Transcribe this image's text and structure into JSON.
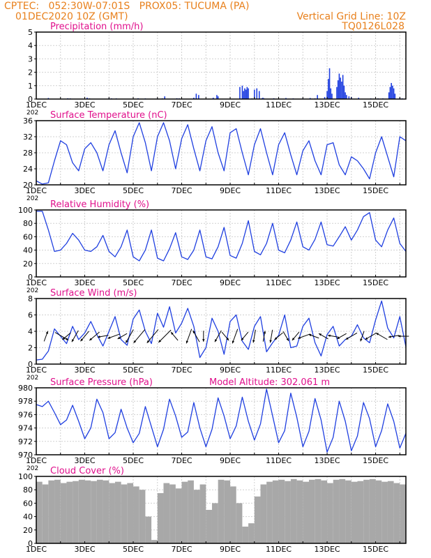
{
  "header": {
    "line1": "CPTEC:   052:30W-07:01S   PROX05: TUCUMA (PA)",
    "line2_left": "01DEC2020 10Z (GMT)",
    "line2_right": "Vertical Grid Line: 10Z",
    "line3_right": "TQ0126L028"
  },
  "colors": {
    "header": "#e8801c",
    "panel_title": "#e0108c",
    "series": "#1f3fe0",
    "bars": "#1f3fe0",
    "cloud": "#a8a8a8",
    "grid": "#d0d0d0",
    "arrows": "#000000"
  },
  "x_ticks": [
    "1DEC",
    "3DEC",
    "5DEC",
    "7DEC",
    "9DEC",
    "11DEC",
    "13DEC",
    "15DEC"
  ],
  "x_overlap_fragment": "202",
  "chart_data": [
    {
      "type": "bar",
      "title": "Precipitation (mm/h)",
      "ylim": [
        0,
        5
      ],
      "yticks": [
        0,
        1,
        2,
        3,
        4,
        5
      ],
      "xlim": [
        0,
        15.25
      ],
      "x": [
        0.5,
        1.3,
        1.4,
        2.1,
        2.2,
        3.0,
        3.1,
        3.3,
        4.2,
        4.5,
        5.0,
        5.2,
        5.3,
        5.8,
        5.9,
        6.5,
        6.6,
        6.7,
        7.3,
        7.45,
        7.5,
        8.4,
        8.5,
        8.55,
        8.6,
        8.65,
        8.7,
        8.75,
        8.9,
        9.0,
        9.1,
        9.2,
        9.3,
        9.35,
        9.4,
        9.8,
        10.3,
        10.6,
        11.0,
        11.3,
        11.5,
        11.6,
        11.9,
        12.0,
        12.05,
        12.1,
        12.15,
        12.2,
        12.4,
        12.45,
        12.5,
        12.55,
        12.6,
        12.65,
        12.7,
        12.75,
        12.8,
        12.9,
        13.0,
        13.3,
        13.8,
        14.1,
        14.3,
        14.55,
        14.6,
        14.65,
        14.7,
        14.75,
        14.8,
        15.0,
        15.1
      ],
      "values": [
        0.08,
        0.06,
        0.05,
        0.1,
        0.05,
        0.06,
        0.05,
        0.05,
        0.06,
        0.05,
        0.05,
        0.05,
        0.2,
        0.06,
        0.05,
        0.1,
        0.4,
        0.3,
        0.1,
        0.3,
        0.2,
        0.9,
        1.0,
        0.6,
        0.8,
        0.7,
        0.9,
        0.8,
        0.05,
        0.7,
        0.8,
        0.6,
        0.05,
        0.1,
        0.05,
        0.06,
        0.08,
        0.05,
        0.05,
        0.08,
        0.05,
        0.3,
        0.15,
        0.6,
        1.5,
        2.3,
        0.8,
        0.4,
        0.9,
        1.4,
        1.9,
        1.6,
        1.3,
        1.8,
        1.0,
        0.5,
        0.3,
        0.2,
        0.15,
        0.1,
        0.05,
        0.05,
        0.05,
        0.5,
        0.9,
        1.2,
        1.0,
        0.8,
        0.4,
        0.1,
        0.05
      ]
    },
    {
      "type": "line",
      "title": "Surface Temperature (nC)",
      "ylim": [
        20,
        36
      ],
      "yticks": [
        20,
        24,
        28,
        32,
        36
      ],
      "x": [
        0,
        0.25,
        0.5,
        0.75,
        1.0,
        1.25,
        1.5,
        1.75,
        2.0,
        2.25,
        2.5,
        2.75,
        3.0,
        3.25,
        3.5,
        3.75,
        4.0,
        4.25,
        4.5,
        4.75,
        5.0,
        5.25,
        5.5,
        5.75,
        6.0,
        6.25,
        6.5,
        6.75,
        7.0,
        7.25,
        7.5,
        7.75,
        8.0,
        8.25,
        8.5,
        8.75,
        9.0,
        9.25,
        9.5,
        9.75,
        10.0,
        10.25,
        10.5,
        10.75,
        11.0,
        11.25,
        11.5,
        11.75,
        12.0,
        12.25,
        12.5,
        12.75,
        13.0,
        13.25,
        13.5,
        13.75,
        14.0,
        14.25,
        14.5,
        14.75,
        15.0,
        15.25
      ],
      "values": [
        21,
        20.2,
        20.5,
        26,
        31,
        30,
        25.5,
        23.5,
        29,
        30.5,
        28,
        23.5,
        30,
        33.5,
        28,
        23,
        32,
        35.5,
        30.5,
        23.5,
        32,
        35.5,
        31,
        24,
        31.5,
        35,
        29,
        23.5,
        31,
        34.5,
        28,
        23.5,
        33,
        34,
        28,
        22.5,
        30,
        34,
        28,
        22.5,
        30,
        33,
        27.5,
        22.5,
        28.5,
        31,
        26,
        22.5,
        30,
        30.5,
        25,
        22.5,
        27,
        26,
        24,
        21.5,
        28,
        32,
        27,
        22,
        32,
        31
      ]
    },
    {
      "type": "line",
      "title": "Relative Humidity (%)",
      "ylim": [
        0,
        100
      ],
      "yticks": [
        0,
        20,
        40,
        60,
        80,
        100
      ],
      "x": [
        0,
        0.25,
        0.5,
        0.75,
        1.0,
        1.25,
        1.5,
        1.75,
        2.0,
        2.25,
        2.5,
        2.75,
        3.0,
        3.25,
        3.5,
        3.75,
        4.0,
        4.25,
        4.5,
        4.75,
        5.0,
        5.25,
        5.5,
        5.75,
        6.0,
        6.25,
        6.5,
        6.75,
        7.0,
        7.25,
        7.5,
        7.75,
        8.0,
        8.25,
        8.5,
        8.75,
        9.0,
        9.25,
        9.5,
        9.75,
        10.0,
        10.25,
        10.5,
        10.75,
        11.0,
        11.25,
        11.5,
        11.75,
        12.0,
        12.25,
        12.5,
        12.75,
        13.0,
        13.25,
        13.5,
        13.75,
        14.0,
        14.25,
        14.5,
        14.75,
        15.0,
        15.25
      ],
      "values": [
        98,
        98,
        70,
        38,
        40,
        50,
        65,
        55,
        40,
        38,
        45,
        62,
        38,
        30,
        45,
        70,
        30,
        24,
        40,
        70,
        28,
        24,
        42,
        66,
        30,
        26,
        40,
        70,
        30,
        27,
        45,
        74,
        32,
        28,
        50,
        84,
        38,
        33,
        50,
        80,
        40,
        36,
        55,
        82,
        45,
        40,
        56,
        82,
        48,
        46,
        60,
        75,
        55,
        70,
        90,
        96,
        55,
        45,
        70,
        88,
        50,
        38
      ]
    },
    {
      "type": "line",
      "title": "Surface Wind (m/s)",
      "ylim": [
        0,
        8
      ],
      "yticks": [
        0,
        2,
        4,
        6,
        8
      ],
      "x": [
        0,
        0.25,
        0.5,
        0.75,
        1.0,
        1.25,
        1.5,
        1.75,
        2.0,
        2.25,
        2.5,
        2.75,
        3.0,
        3.25,
        3.5,
        3.75,
        4.0,
        4.25,
        4.5,
        4.75,
        5.0,
        5.25,
        5.5,
        5.75,
        6.0,
        6.25,
        6.5,
        6.75,
        7.0,
        7.25,
        7.5,
        7.75,
        8.0,
        8.25,
        8.5,
        8.75,
        9.0,
        9.25,
        9.5,
        9.75,
        10.0,
        10.25,
        10.5,
        10.75,
        11.0,
        11.25,
        11.5,
        11.75,
        12.0,
        12.25,
        12.5,
        12.75,
        13.0,
        13.25,
        13.5,
        13.75,
        14.0,
        14.25,
        14.5,
        14.75,
        15.0,
        15.25
      ],
      "values": [
        0.5,
        0.6,
        1.6,
        4.3,
        3.4,
        2.5,
        4.6,
        3.0,
        3.8,
        5.2,
        3.6,
        2.2,
        4.0,
        5.8,
        3.0,
        2.3,
        5.5,
        6.6,
        4.0,
        2.5,
        6.2,
        4.5,
        7.0,
        3.8,
        5.0,
        6.8,
        4.6,
        0.8,
        2.0,
        5.6,
        4.0,
        1.2,
        5.2,
        6.0,
        2.8,
        1.8,
        4.6,
        5.8,
        1.5,
        2.6,
        3.5,
        6.0,
        2.0,
        2.2,
        4.6,
        5.6,
        2.6,
        1.0,
        3.6,
        4.6,
        2.2,
        3.0,
        3.4,
        4.8,
        3.2,
        2.6,
        5.4,
        7.7,
        4.4,
        3.2,
        5.8,
        2.1
      ],
      "arrows": [
        {
          "x": 0.4,
          "dir_deg": 20,
          "speed": 3
        },
        {
          "x": 1.05,
          "dir_deg": 120,
          "speed": 5
        },
        {
          "x": 1.25,
          "dir_deg": 230,
          "speed": 3
        },
        {
          "x": 1.6,
          "dir_deg": 210,
          "speed": 4
        },
        {
          "x": 2.0,
          "dir_deg": 220,
          "speed": 4
        },
        {
          "x": 2.4,
          "dir_deg": 230,
          "speed": 4
        },
        {
          "x": 2.75,
          "dir_deg": 260,
          "speed": 3
        },
        {
          "x": 3.2,
          "dir_deg": 250,
          "speed": 4
        },
        {
          "x": 3.55,
          "dir_deg": 240,
          "speed": 3
        },
        {
          "x": 3.85,
          "dir_deg": 210,
          "speed": 5
        },
        {
          "x": 4.25,
          "dir_deg": 220,
          "speed": 6
        },
        {
          "x": 4.8,
          "dir_deg": 220,
          "speed": 6
        },
        {
          "x": 5.3,
          "dir_deg": 225,
          "speed": 6
        },
        {
          "x": 5.7,
          "dir_deg": 320,
          "speed": 3
        },
        {
          "x": 6.3,
          "dir_deg": 200,
          "speed": 5
        },
        {
          "x": 6.6,
          "dir_deg": 330,
          "speed": 4
        },
        {
          "x": 6.9,
          "dir_deg": 180,
          "speed": 3
        },
        {
          "x": 7.5,
          "dir_deg": 210,
          "speed": 4
        },
        {
          "x": 7.8,
          "dir_deg": 140,
          "speed": 3
        },
        {
          "x": 8.2,
          "dir_deg": 200,
          "speed": 5
        },
        {
          "x": 8.6,
          "dir_deg": 220,
          "speed": 3
        },
        {
          "x": 9.0,
          "dir_deg": 190,
          "speed": 4
        },
        {
          "x": 9.4,
          "dir_deg": 10,
          "speed": 3
        },
        {
          "x": 9.7,
          "dir_deg": 190,
          "speed": 4
        },
        {
          "x": 10.0,
          "dir_deg": 230,
          "speed": 3
        },
        {
          "x": 10.3,
          "dir_deg": 150,
          "speed": 3
        },
        {
          "x": 10.7,
          "dir_deg": 220,
          "speed": 3
        },
        {
          "x": 11.05,
          "dir_deg": 250,
          "speed": 4
        },
        {
          "x": 11.45,
          "dir_deg": 290,
          "speed": 3
        },
        {
          "x": 11.85,
          "dir_deg": 300,
          "speed": 3
        },
        {
          "x": 12.25,
          "dir_deg": 280,
          "speed": 3
        },
        {
          "x": 12.6,
          "dir_deg": 240,
          "speed": 3
        },
        {
          "x": 13.0,
          "dir_deg": 240,
          "speed": 4
        },
        {
          "x": 13.45,
          "dir_deg": 200,
          "speed": 3
        },
        {
          "x": 13.8,
          "dir_deg": 240,
          "speed": 4
        },
        {
          "x": 14.25,
          "dir_deg": 300,
          "speed": 4
        },
        {
          "x": 14.75,
          "dir_deg": 260,
          "speed": 3
        },
        {
          "x": 15.15,
          "dir_deg": 270,
          "speed": 3
        }
      ]
    },
    {
      "type": "line",
      "title": "Surface Pressure (hPa)",
      "annotation": "Model Altitude: 302.061 m",
      "ylim": [
        970,
        980
      ],
      "yticks": [
        970,
        972,
        974,
        976,
        978,
        980
      ],
      "x": [
        0,
        0.25,
        0.5,
        0.75,
        1.0,
        1.25,
        1.5,
        1.75,
        2.0,
        2.25,
        2.5,
        2.75,
        3.0,
        3.25,
        3.5,
        3.75,
        4.0,
        4.25,
        4.5,
        4.75,
        5.0,
        5.25,
        5.5,
        5.75,
        6.0,
        6.25,
        6.5,
        6.75,
        7.0,
        7.25,
        7.5,
        7.75,
        8.0,
        8.25,
        8.5,
        8.75,
        9.0,
        9.25,
        9.5,
        9.75,
        10.0,
        10.25,
        10.5,
        10.75,
        11.0,
        11.25,
        11.5,
        11.75,
        12.0,
        12.25,
        12.5,
        12.75,
        13.0,
        13.25,
        13.5,
        13.75,
        14.0,
        14.25,
        14.5,
        14.75,
        15.0,
        15.25
      ],
      "values": [
        977.5,
        977.2,
        978.0,
        976.3,
        974.5,
        975.2,
        977.4,
        975.0,
        972.4,
        974.0,
        978.3,
        976.3,
        972.4,
        973.3,
        976.8,
        974.0,
        971.8,
        973.2,
        977.2,
        974.2,
        971.2,
        973.8,
        978.3,
        975.8,
        972.6,
        973.4,
        977.8,
        974.0,
        971.2,
        973.8,
        978.5,
        975.8,
        972.4,
        974.3,
        978.6,
        975.0,
        972.2,
        974.6,
        979.8,
        975.8,
        971.8,
        973.6,
        979.2,
        975.6,
        971.2,
        973.5,
        978.4,
        975.2,
        970.4,
        972.6,
        978.0,
        975.0,
        970.6,
        972.8,
        977.8,
        975.4,
        971.2,
        973.6,
        977.6,
        975.0,
        971.0,
        973.2
      ]
    },
    {
      "type": "area",
      "title": "Cloud Cover (%)",
      "ylim": [
        0,
        100
      ],
      "yticks": [
        0,
        20,
        40,
        60,
        80,
        100
      ],
      "x": [
        0,
        0.25,
        0.5,
        0.75,
        1.0,
        1.25,
        1.5,
        1.75,
        2.0,
        2.25,
        2.5,
        2.75,
        3.0,
        3.25,
        3.5,
        3.75,
        4.0,
        4.25,
        4.5,
        4.75,
        5.0,
        5.25,
        5.5,
        5.75,
        6.0,
        6.25,
        6.5,
        6.75,
        7.0,
        7.25,
        7.5,
        7.75,
        8.0,
        8.25,
        8.5,
        8.75,
        9.0,
        9.25,
        9.5,
        9.75,
        10.0,
        10.25,
        10.5,
        10.75,
        11.0,
        11.25,
        11.5,
        11.75,
        12.0,
        12.25,
        12.5,
        12.75,
        13.0,
        13.25,
        13.5,
        13.75,
        14.0,
        14.25,
        14.5,
        14.75,
        15.0,
        15.25
      ],
      "values": [
        92,
        88,
        94,
        95,
        90,
        92,
        93,
        95,
        94,
        93,
        95,
        94,
        90,
        92,
        88,
        90,
        85,
        80,
        40,
        5,
        75,
        90,
        88,
        82,
        92,
        94,
        80,
        88,
        50,
        60,
        95,
        94,
        85,
        60,
        25,
        30,
        70,
        88,
        92,
        94,
        95,
        93,
        96,
        94,
        92,
        95,
        96,
        94,
        90,
        95,
        96,
        94,
        92,
        93,
        95,
        96,
        94,
        92,
        93,
        90,
        88,
        85
      ]
    }
  ]
}
